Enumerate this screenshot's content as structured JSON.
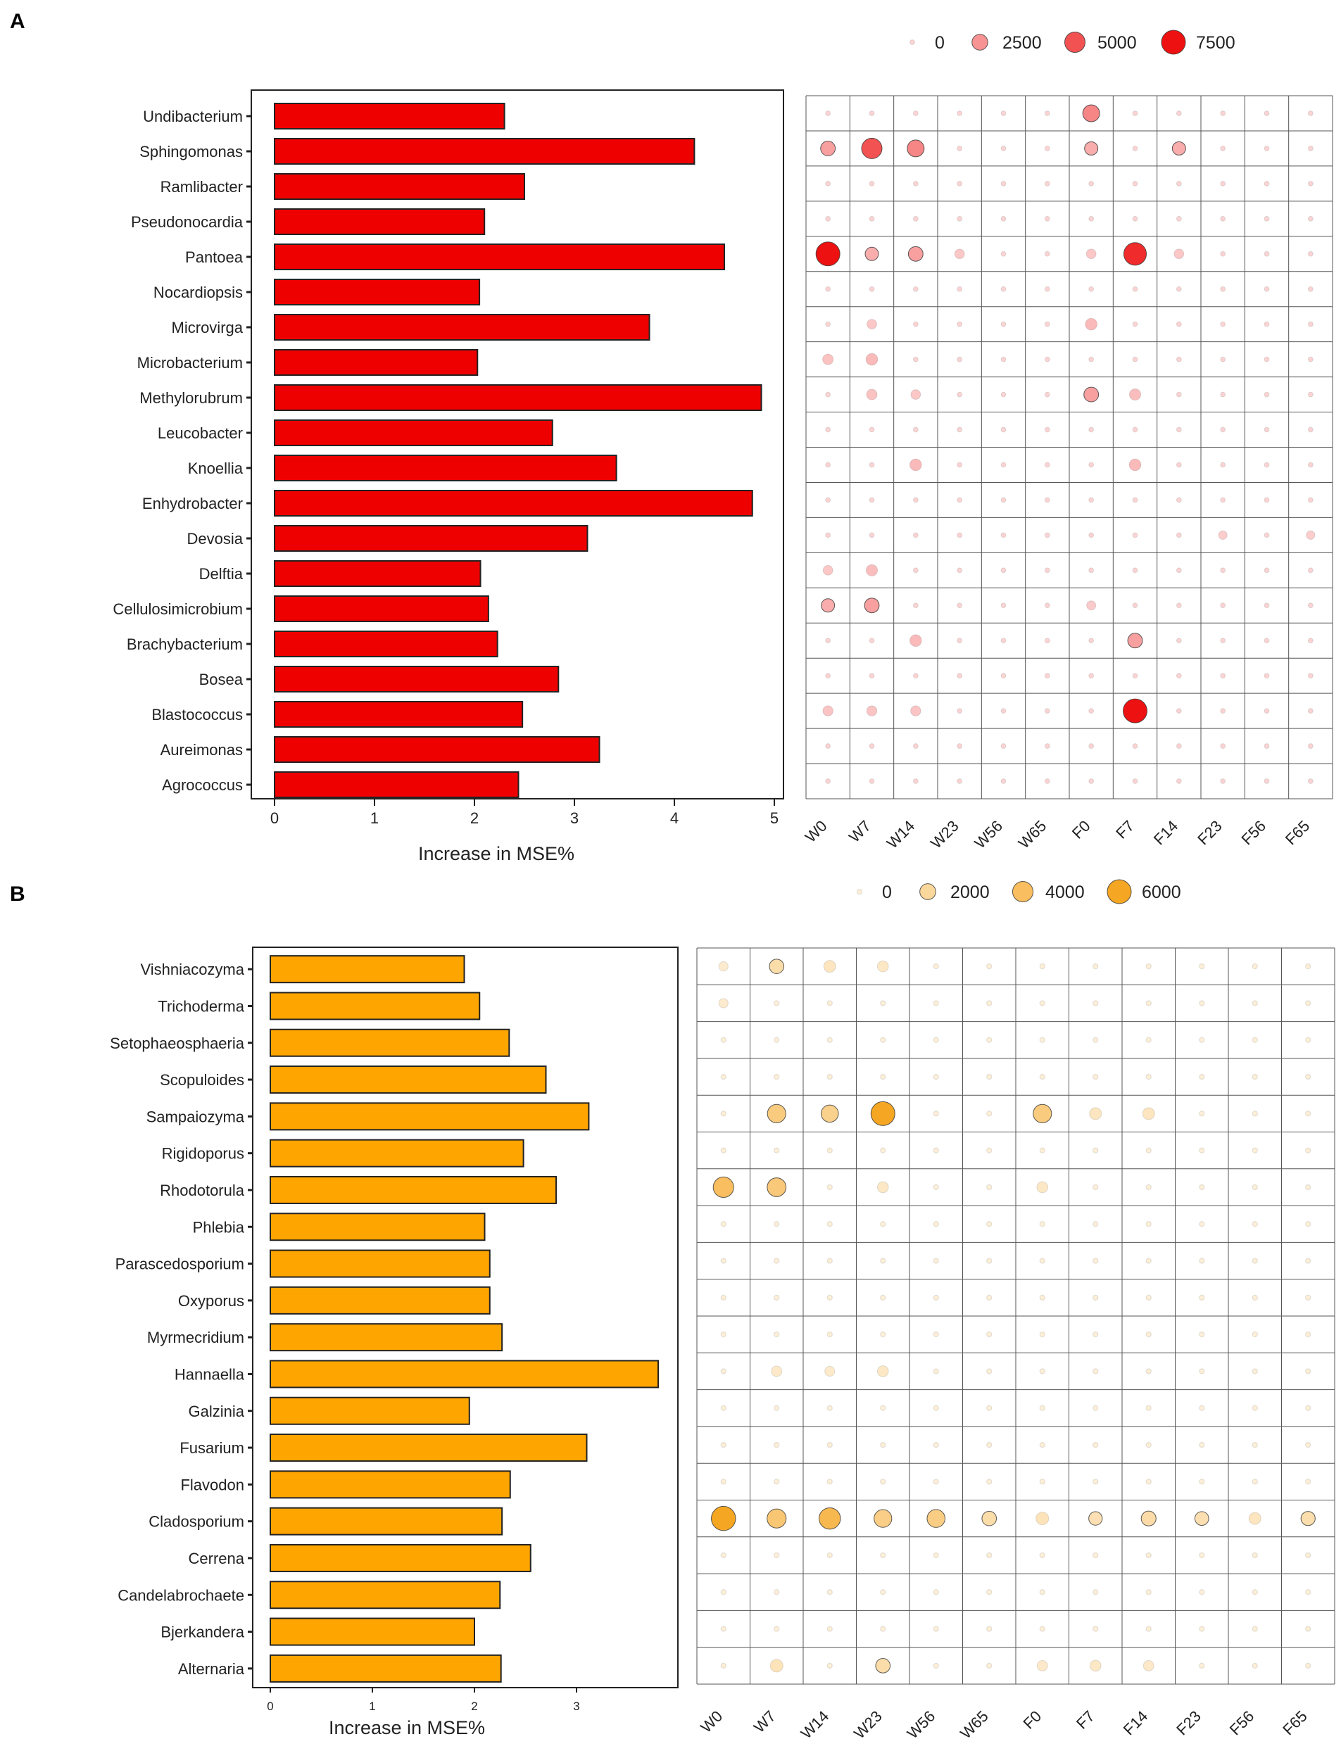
{
  "chart_data": [
    {
      "panel": "A",
      "type": "bar",
      "orientation": "horizontal",
      "bar_color": "#ee0000",
      "bubble_color": "#ee1111",
      "categories": [
        "Undibacterium",
        "Sphingomonas",
        "Ramlibacter",
        "Pseudonocardia",
        "Pantoea",
        "Nocardiopsis",
        "Microvirga",
        "Microbacterium",
        "Methylorubrum",
        "Leucobacter",
        "Knoellia",
        "Enhydrobacter",
        "Devosia",
        "Delftia",
        "Cellulosimicrobium",
        "Brachybacterium",
        "Bosea",
        "Blastococcus",
        "Aureimonas",
        "Agrococcus"
      ],
      "values": [
        2.3,
        4.2,
        2.5,
        2.1,
        4.5,
        2.05,
        3.75,
        2.03,
        4.87,
        2.78,
        3.42,
        4.78,
        3.13,
        2.06,
        2.14,
        2.23,
        2.84,
        2.48,
        3.25,
        2.44
      ],
      "xlabel": "Increase in MSE%",
      "xticks": [
        0,
        1,
        2,
        3,
        4,
        5
      ],
      "xlim": [
        -0.2,
        5.05
      ],
      "bubble_columns": [
        "W0",
        "W7",
        "W14",
        "W23",
        "W56",
        "W65",
        "F0",
        "F7",
        "F14",
        "F23",
        "F56",
        "F65"
      ],
      "bubble_values": [
        [
          0,
          0,
          0,
          0,
          0,
          0,
          3000,
          0,
          0,
          0,
          0,
          0
        ],
        [
          2000,
          5000,
          3000,
          0,
          0,
          0,
          1500,
          0,
          1500,
          0,
          0,
          0
        ],
        [
          0,
          0,
          0,
          0,
          0,
          0,
          0,
          0,
          0,
          0,
          0,
          0
        ],
        [
          0,
          0,
          0,
          0,
          0,
          0,
          0,
          0,
          0,
          0,
          0,
          0
        ],
        [
          7500,
          1500,
          2000,
          500,
          0,
          0,
          500,
          6500,
          500,
          0,
          0,
          0
        ],
        [
          0,
          0,
          0,
          0,
          0,
          0,
          0,
          0,
          0,
          0,
          0,
          0
        ],
        [
          0,
          500,
          0,
          0,
          0,
          0,
          1000,
          0,
          0,
          0,
          0,
          0
        ],
        [
          700,
          1000,
          0,
          0,
          0,
          0,
          0,
          0,
          0,
          0,
          0,
          0
        ],
        [
          0,
          700,
          500,
          0,
          0,
          0,
          2000,
          900,
          0,
          0,
          0,
          0
        ],
        [
          0,
          0,
          0,
          0,
          0,
          0,
          0,
          0,
          0,
          0,
          0,
          0
        ],
        [
          0,
          0,
          1000,
          0,
          0,
          0,
          0,
          1000,
          0,
          0,
          0,
          0
        ],
        [
          0,
          0,
          0,
          0,
          0,
          0,
          0,
          0,
          0,
          0,
          0,
          0
        ],
        [
          0,
          0,
          0,
          0,
          0,
          0,
          0,
          0,
          0,
          300,
          0,
          300
        ],
        [
          500,
          900,
          0,
          0,
          0,
          0,
          0,
          0,
          0,
          0,
          0,
          0
        ],
        [
          1500,
          2000,
          0,
          0,
          0,
          0,
          400,
          0,
          0,
          0,
          0,
          0
        ],
        [
          0,
          0,
          1000,
          0,
          0,
          0,
          0,
          2000,
          0,
          0,
          0,
          0
        ],
        [
          0,
          0,
          0,
          0,
          0,
          0,
          0,
          0,
          0,
          0,
          0,
          0
        ],
        [
          600,
          600,
          600,
          0,
          0,
          0,
          0,
          7500,
          0,
          0,
          0,
          0
        ],
        [
          0,
          0,
          0,
          0,
          0,
          0,
          0,
          0,
          0,
          0,
          0,
          0
        ],
        [
          0,
          0,
          0,
          0,
          0,
          0,
          0,
          0,
          0,
          0,
          0,
          0
        ]
      ],
      "legend": {
        "labels": [
          "0",
          "2500",
          "5000",
          "7500"
        ],
        "values": [
          0,
          2500,
          5000,
          7500
        ]
      }
    },
    {
      "panel": "B",
      "type": "bar",
      "orientation": "horizontal",
      "bar_color": "#ffa500",
      "bubble_color": "#f5a623",
      "categories": [
        "Vishniacozyma",
        "Trichoderma",
        "Setophaeosphaeria",
        "Scopuloides",
        "Sampaiozyma",
        "Rigidoporus",
        "Rhodotorula",
        "Phlebia",
        "Parascedosporium",
        "Oxyporus",
        "Myrmecridium",
        "Hannaella",
        "Galzinia",
        "Fusarium",
        "Flavodon",
        "Cladosporium",
        "Cerrena",
        "Candelabrochaete",
        "Bjerkandera",
        "Alternaria"
      ],
      "values": [
        1.9,
        2.05,
        2.34,
        2.7,
        3.12,
        2.48,
        2.8,
        2.1,
        2.15,
        2.15,
        2.27,
        3.8,
        1.95,
        3.1,
        2.35,
        2.27,
        2.55,
        2.25,
        2.0,
        2.26
      ],
      "xlabel": "Increase in MSE%",
      "xticks": [
        0,
        1,
        2,
        3
      ],
      "xlim": [
        -0.1,
        3.97
      ],
      "bubble_columns": [
        "W0",
        "W7",
        "W14",
        "W23",
        "W56",
        "W65",
        "F0",
        "F7",
        "F14",
        "F23",
        "F56",
        "F65"
      ],
      "bubble_values": [
        [
          300,
          1500,
          800,
          600,
          0,
          0,
          0,
          0,
          0,
          0,
          0,
          0
        ],
        [
          300,
          0,
          0,
          0,
          0,
          0,
          0,
          0,
          0,
          0,
          0,
          0
        ],
        [
          0,
          0,
          0,
          0,
          0,
          0,
          0,
          0,
          0,
          0,
          0,
          0
        ],
        [
          0,
          0,
          0,
          0,
          0,
          0,
          0,
          0,
          0,
          0,
          0,
          0
        ],
        [
          0,
          3000,
          2500,
          6000,
          0,
          0,
          3000,
          800,
          800,
          0,
          0,
          0
        ],
        [
          0,
          0,
          0,
          0,
          0,
          0,
          0,
          0,
          0,
          0,
          0,
          0
        ],
        [
          4000,
          3200,
          0,
          600,
          0,
          0,
          600,
          0,
          0,
          0,
          0,
          0
        ],
        [
          0,
          0,
          0,
          0,
          0,
          0,
          0,
          0,
          0,
          0,
          0,
          0
        ],
        [
          0,
          0,
          0,
          0,
          0,
          0,
          0,
          0,
          0,
          0,
          0,
          0
        ],
        [
          0,
          0,
          0,
          0,
          0,
          0,
          0,
          0,
          0,
          0,
          0,
          0
        ],
        [
          0,
          0,
          0,
          0,
          0,
          0,
          0,
          0,
          0,
          0,
          0,
          0
        ],
        [
          0,
          500,
          400,
          600,
          0,
          0,
          0,
          0,
          0,
          0,
          0,
          0
        ],
        [
          0,
          0,
          0,
          0,
          0,
          0,
          0,
          0,
          0,
          0,
          0,
          0
        ],
        [
          0,
          0,
          0,
          0,
          0,
          0,
          0,
          0,
          0,
          0,
          0,
          0
        ],
        [
          0,
          0,
          0,
          0,
          0,
          0,
          0,
          0,
          0,
          0,
          0,
          0
        ],
        [
          6200,
          3300,
          4500,
          2700,
          2800,
          1500,
          1000,
          1200,
          1600,
          1300,
          800,
          1400
        ],
        [
          0,
          0,
          0,
          0,
          0,
          0,
          0,
          0,
          0,
          0,
          0,
          0
        ],
        [
          0,
          0,
          0,
          0,
          0,
          0,
          0,
          0,
          0,
          0,
          0,
          0
        ],
        [
          0,
          0,
          0,
          0,
          0,
          0,
          0,
          0,
          0,
          0,
          0,
          0
        ],
        [
          0,
          1000,
          0,
          1500,
          0,
          0,
          500,
          600,
          500,
          0,
          0,
          0
        ]
      ],
      "legend": {
        "labels": [
          "0",
          "2000",
          "4000",
          "6000"
        ],
        "values": [
          0,
          2000,
          4000,
          6000
        ]
      }
    }
  ]
}
